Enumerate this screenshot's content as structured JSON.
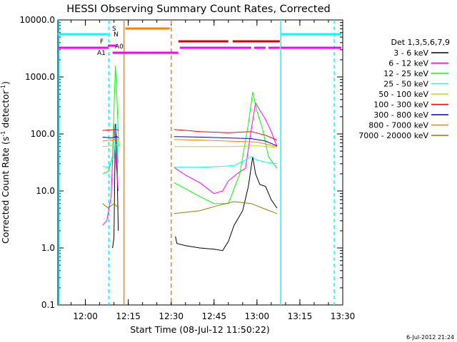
{
  "header": {
    "title": "HESSI Observing Summary Count Rates, Corrected",
    "xlabel": "Start Time (08-Jul-12 11:50:22)",
    "ylabel_main": "Corrected Count Rate (s",
    "ylabel_sup1": "-1",
    "ylabel_mid": " detector",
    "ylabel_sup2": "-1",
    "ylabel_end": ")",
    "stamp": "6-Jul-2012 21:24"
  },
  "legend": {
    "title": "Det 1,3,5,6,7,9"
  },
  "flags": {
    "S": "S",
    "N": "N",
    "F": "F",
    "A0": "A0",
    "A1": "A1"
  },
  "chart_data": {
    "type": "line",
    "title": "HESSI Observing Summary Count Rates, Corrected",
    "xlabel": "Start Time (08-Jul-12 11:50:22)",
    "ylabel": "Corrected Count Rate (s-1 detector-1)",
    "y_scale": "log",
    "ylim": [
      0.1,
      10000
    ],
    "xlim": [
      "11:50:22",
      "13:30"
    ],
    "x_ticks": [
      "12:00",
      "12:15",
      "12:30",
      "12:45",
      "13:00",
      "13:15",
      "13:30"
    ],
    "y_ticks": [
      "0.1",
      "1.0",
      "10.0",
      "100.0",
      "1000.0",
      "10000.0"
    ],
    "grid": false,
    "legend_position": "right",
    "series": [
      {
        "name": "3 - 6 keV",
        "color": "#000000",
        "points": [
          [
            "12:09:30",
            1.0
          ],
          [
            "12:10:00",
            1.5
          ],
          [
            "12:10:30",
            150
          ],
          [
            "12:11:00",
            50
          ],
          [
            "12:11:30",
            2
          ],
          [
            "12:31:30",
            1.6
          ],
          [
            "12:32:00",
            1.2
          ],
          [
            "12:35:00",
            1.1
          ],
          [
            "12:40:00",
            1.0
          ],
          [
            "12:45:00",
            0.95
          ],
          [
            "12:48:00",
            0.9
          ],
          [
            "12:50:00",
            1.3
          ],
          [
            "12:52:00",
            2.5
          ],
          [
            "12:55:00",
            4.5
          ],
          [
            "12:57:00",
            12
          ],
          [
            "12:58:30",
            40
          ],
          [
            "12:59:30",
            20
          ],
          [
            "13:01:00",
            13
          ],
          [
            "13:03:00",
            12
          ],
          [
            "13:05:00",
            7
          ],
          [
            "13:07:00",
            5
          ]
        ]
      },
      {
        "name": "6 - 12 keV",
        "color": "#ff00ff",
        "points": [
          [
            "12:06:00",
            2.5
          ],
          [
            "12:07:30",
            3
          ],
          [
            "12:09:00",
            8
          ],
          [
            "12:10:00",
            150
          ],
          [
            "12:10:45",
            30
          ],
          [
            "12:11:30",
            10
          ],
          [
            "12:31:00",
            26
          ],
          [
            "12:35:00",
            19
          ],
          [
            "12:40:00",
            14
          ],
          [
            "12:45:00",
            9
          ],
          [
            "12:48:00",
            10
          ],
          [
            "12:50:00",
            15
          ],
          [
            "12:53:00",
            20
          ],
          [
            "12:56:00",
            25
          ],
          [
            "12:58:00",
            120
          ],
          [
            "12:59:30",
            350
          ],
          [
            "13:01:00",
            260
          ],
          [
            "13:03:00",
            180
          ],
          [
            "13:05:00",
            110
          ],
          [
            "13:07:00",
            60
          ]
        ]
      },
      {
        "name": "12 - 25 keV",
        "color": "#00ff00",
        "points": [
          [
            "12:06:00",
            20
          ],
          [
            "12:08:00",
            22
          ],
          [
            "12:09:30",
            40
          ],
          [
            "12:10:30",
            1600
          ],
          [
            "12:11:00",
            500
          ],
          [
            "12:11:40",
            60
          ],
          [
            "12:31:00",
            14
          ],
          [
            "12:35:00",
            11
          ],
          [
            "12:40:00",
            8
          ],
          [
            "12:45:00",
            6
          ],
          [
            "12:50:00",
            6
          ],
          [
            "12:54:00",
            20
          ],
          [
            "12:57:00",
            150
          ],
          [
            "12:58:30",
            550
          ],
          [
            "13:00:00",
            250
          ],
          [
            "13:02:00",
            120
          ],
          [
            "13:04:00",
            40
          ],
          [
            "13:07:00",
            25
          ]
        ]
      },
      {
        "name": "25 - 50 keV",
        "color": "#00ffff",
        "points": [
          [
            "12:06:00",
            27
          ],
          [
            "12:08:00",
            26
          ],
          [
            "12:10:00",
            40
          ],
          [
            "12:10:45",
            150
          ],
          [
            "12:11:30",
            30
          ],
          [
            "12:31:00",
            26
          ],
          [
            "12:40:00",
            26
          ],
          [
            "12:48:00",
            27
          ],
          [
            "12:52:00",
            28
          ],
          [
            "12:56:00",
            35
          ],
          [
            "12:58:00",
            40
          ],
          [
            "13:00:00",
            35
          ],
          [
            "13:03:00",
            32
          ],
          [
            "13:07:00",
            30
          ]
        ]
      },
      {
        "name": "50 - 100 keV",
        "color": "#d4d400",
        "points": [
          [
            "12:06:00",
            60
          ],
          [
            "12:09:00",
            62
          ],
          [
            "12:11:00",
            65
          ],
          [
            "12:11:40",
            60
          ],
          [
            "12:31:00",
            60
          ],
          [
            "12:40:00",
            60
          ],
          [
            "12:50:00",
            60
          ],
          [
            "13:00:00",
            62
          ],
          [
            "13:07:00",
            58
          ]
        ]
      },
      {
        "name": "100 - 300 keV",
        "color": "#ff0000",
        "points": [
          [
            "12:06:00",
            115
          ],
          [
            "12:09:00",
            118
          ],
          [
            "12:11:00",
            120
          ],
          [
            "12:11:40",
            115
          ],
          [
            "12:31:00",
            120
          ],
          [
            "12:40:00",
            110
          ],
          [
            "12:50:00",
            105
          ],
          [
            "12:58:00",
            110
          ],
          [
            "13:03:00",
            95
          ],
          [
            "13:07:00",
            78
          ]
        ]
      },
      {
        "name": "300 - 800 keV",
        "color": "#0000cc",
        "points": [
          [
            "12:06:00",
            88
          ],
          [
            "12:09:00",
            85
          ],
          [
            "12:11:00",
            90
          ],
          [
            "12:11:40",
            85
          ],
          [
            "12:31:00",
            90
          ],
          [
            "12:40:00",
            88
          ],
          [
            "12:50:00",
            85
          ],
          [
            "12:58:00",
            83
          ],
          [
            "13:03:00",
            75
          ],
          [
            "13:07:00",
            62
          ]
        ]
      },
      {
        "name": "800 - 7000 keV",
        "color": "#ff8000",
        "points": [
          [
            "12:06:00",
            75
          ],
          [
            "12:09:00",
            78
          ],
          [
            "12:11:00",
            80
          ],
          [
            "12:11:40",
            78
          ],
          [
            "12:31:00",
            80
          ],
          [
            "12:40:00",
            78
          ],
          [
            "12:50:00",
            75
          ],
          [
            "13:00:00",
            72
          ],
          [
            "13:07:00",
            60
          ]
        ]
      },
      {
        "name": "7000 - 20000 keV",
        "color": "#8b8000",
        "points": [
          [
            "12:06:00",
            6
          ],
          [
            "12:08:00",
            5
          ],
          [
            "12:10:00",
            6
          ],
          [
            "12:11:40",
            5
          ],
          [
            "12:31:00",
            4
          ],
          [
            "12:40:00",
            4.5
          ],
          [
            "12:46:00",
            5.5
          ],
          [
            "12:52:00",
            6.5
          ],
          [
            "12:58:00",
            6
          ],
          [
            "13:02:00",
            5
          ],
          [
            "13:07:00",
            4
          ]
        ]
      }
    ]
  }
}
